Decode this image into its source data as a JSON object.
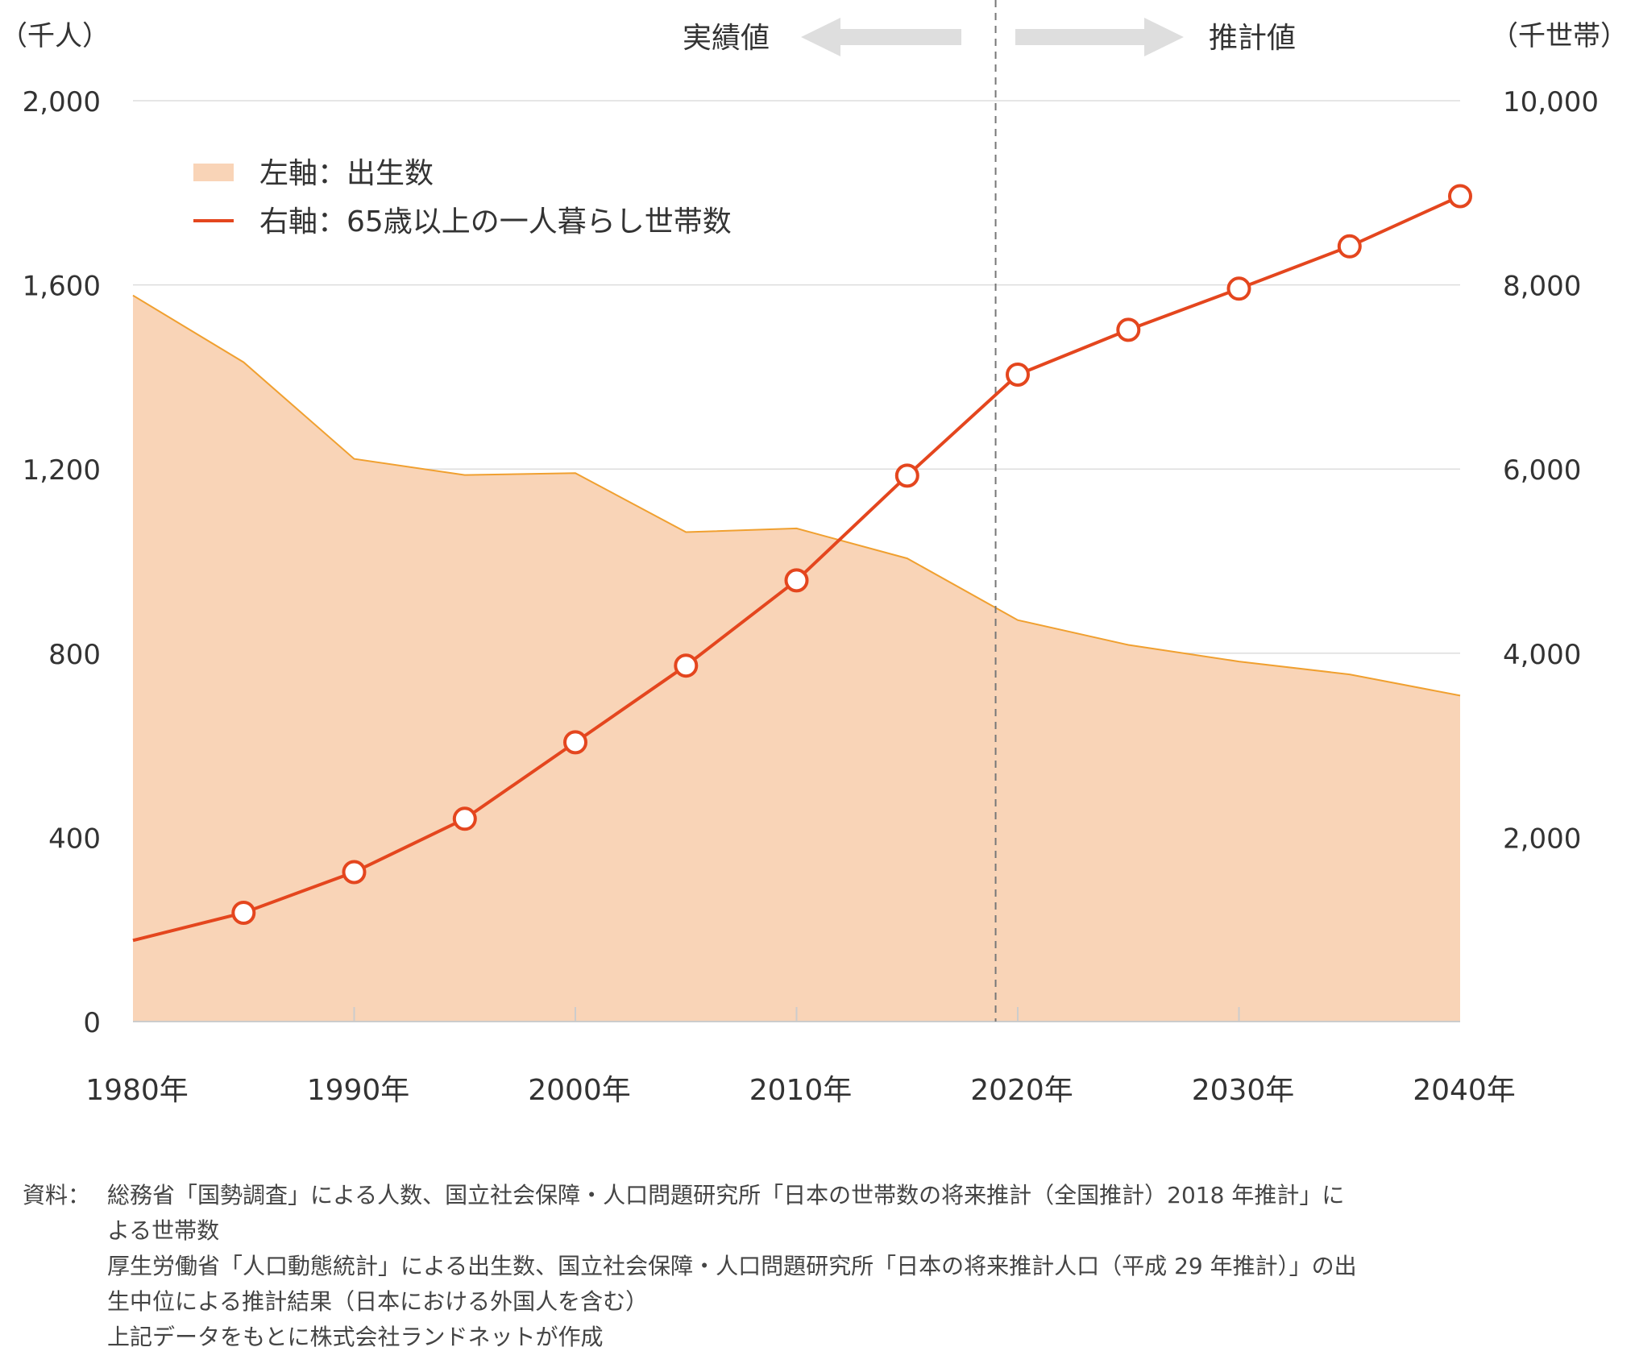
{
  "chart_data": {
    "type": "line",
    "x": [
      1980,
      1985,
      1990,
      1995,
      2000,
      2005,
      2010,
      2015,
      2020,
      2025,
      2030,
      2035,
      2040
    ],
    "x_tick_values": [
      1980,
      1990,
      2000,
      2010,
      2020,
      2030,
      2040
    ],
    "x_tick_labels": [
      "1980年",
      "1990年",
      "2000年",
      "2010年",
      "2020年",
      "2030年",
      "2040年"
    ],
    "y_left": {
      "unit": "（千人）",
      "range": [
        0,
        2000
      ],
      "ticks": [
        "0",
        "400",
        "800",
        "1,200",
        "1,600",
        "2,000"
      ],
      "tick_values": [
        0,
        400,
        800,
        1200,
        1600,
        2000
      ]
    },
    "y_right": {
      "unit": "（千世帯）",
      "range": [
        0,
        10000
      ],
      "ticks": [
        "2,000",
        "4,000",
        "6,000",
        "8,000",
        "10,000"
      ],
      "tick_values": [
        2000,
        4000,
        6000,
        8000,
        10000
      ]
    },
    "series": [
      {
        "name": "左軸：出生数",
        "axis": "left",
        "kind": "area",
        "color": "#f9d4b7",
        "stroke": "#f0a030",
        "values": [
          1577,
          1432,
          1222,
          1187,
          1191,
          1063,
          1071,
          1006,
          872,
          818,
          782,
          754,
          708
        ]
      },
      {
        "name": "右軸：65歳以上の一人暮らし世帯数",
        "axis": "right",
        "kind": "line",
        "color": "#e4461e",
        "values": [
          881,
          1181,
          1623,
          2202,
          3032,
          3865,
          4791,
          5928,
          7025,
          7512,
          7959,
          8418,
          8963
        ]
      }
    ],
    "divider_x": 2019,
    "phase_labels": {
      "left": "実績値",
      "right": "推計値"
    },
    "grid": true,
    "legend": "top-left"
  },
  "source": {
    "label": "資料：",
    "lines": [
      "総務省「国勢調査」による人数、国立社会保障・人口問題研究所「日本の世帯数の将来推計（全国推計）2018 年推計」に",
      "よる世帯数",
      "厚生労働省「人口動態統計」による出生数、国立社会保障・人口問題研究所「日本の将来推計人口（平成 29 年推計）」の出",
      "生中位による推計結果（日本における外国人を含む）",
      "上記データをもとに株式会社ランドネットが作成"
    ]
  }
}
